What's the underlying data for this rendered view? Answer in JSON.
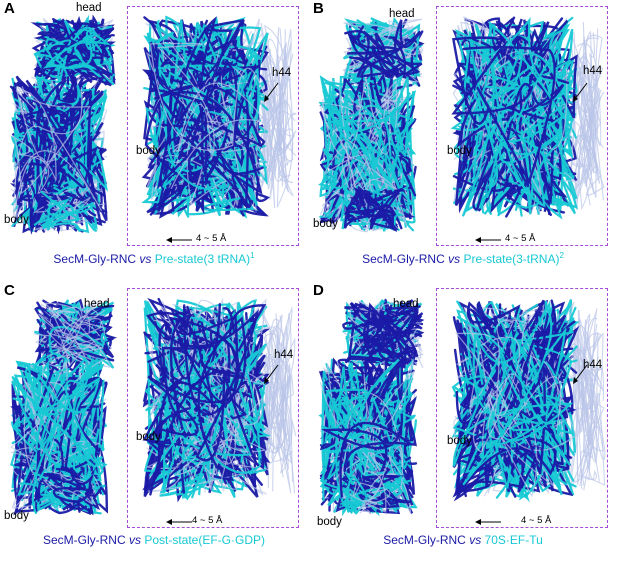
{
  "colors": {
    "reference": "#1a1aa6",
    "compared": "#17c9d4",
    "box_border": "#a64bd6",
    "faint_rna": "#b9c4e8"
  },
  "panels": [
    {
      "letter": "A",
      "head_label": "head",
      "body_label_overview": "body",
      "body_label_zoom": "body",
      "h44_label": "h44",
      "scale_label": "4 ~ 5 Å",
      "caption": {
        "ref": "SecM-Gly-RNC",
        "vs": "vs",
        "cmp": "Pre-state(3 tRNA)",
        "sup": "1"
      }
    },
    {
      "letter": "B",
      "head_label": "head",
      "body_label_overview": "body",
      "body_label_zoom": "body",
      "h44_label": "h44",
      "scale_label": "4 ~ 5 Å",
      "caption": {
        "ref": "SecM-Gly-RNC",
        "vs": "vs",
        "cmp": "Pre-state(3-tRNA)",
        "sup": "2"
      }
    },
    {
      "letter": "C",
      "head_label": "head",
      "body_label_overview": "body",
      "body_label_zoom": "body",
      "h44_label": "h44",
      "scale_label": "4 ~ 5 Å",
      "caption": {
        "ref": "SecM-Gly-RNC",
        "vs": "vs",
        "cmp": "Post-state(EF-G·GDP)",
        "sup": ""
      }
    },
    {
      "letter": "D",
      "head_label": "head",
      "body_label_overview": "body",
      "body_label_zoom": "body",
      "h44_label": "h44",
      "scale_label": "4 ~ 5 Å",
      "caption": {
        "ref": "SecM-Gly-RNC",
        "vs": "vs",
        "cmp": "70S·EF-Tu",
        "sup": ""
      }
    }
  ]
}
